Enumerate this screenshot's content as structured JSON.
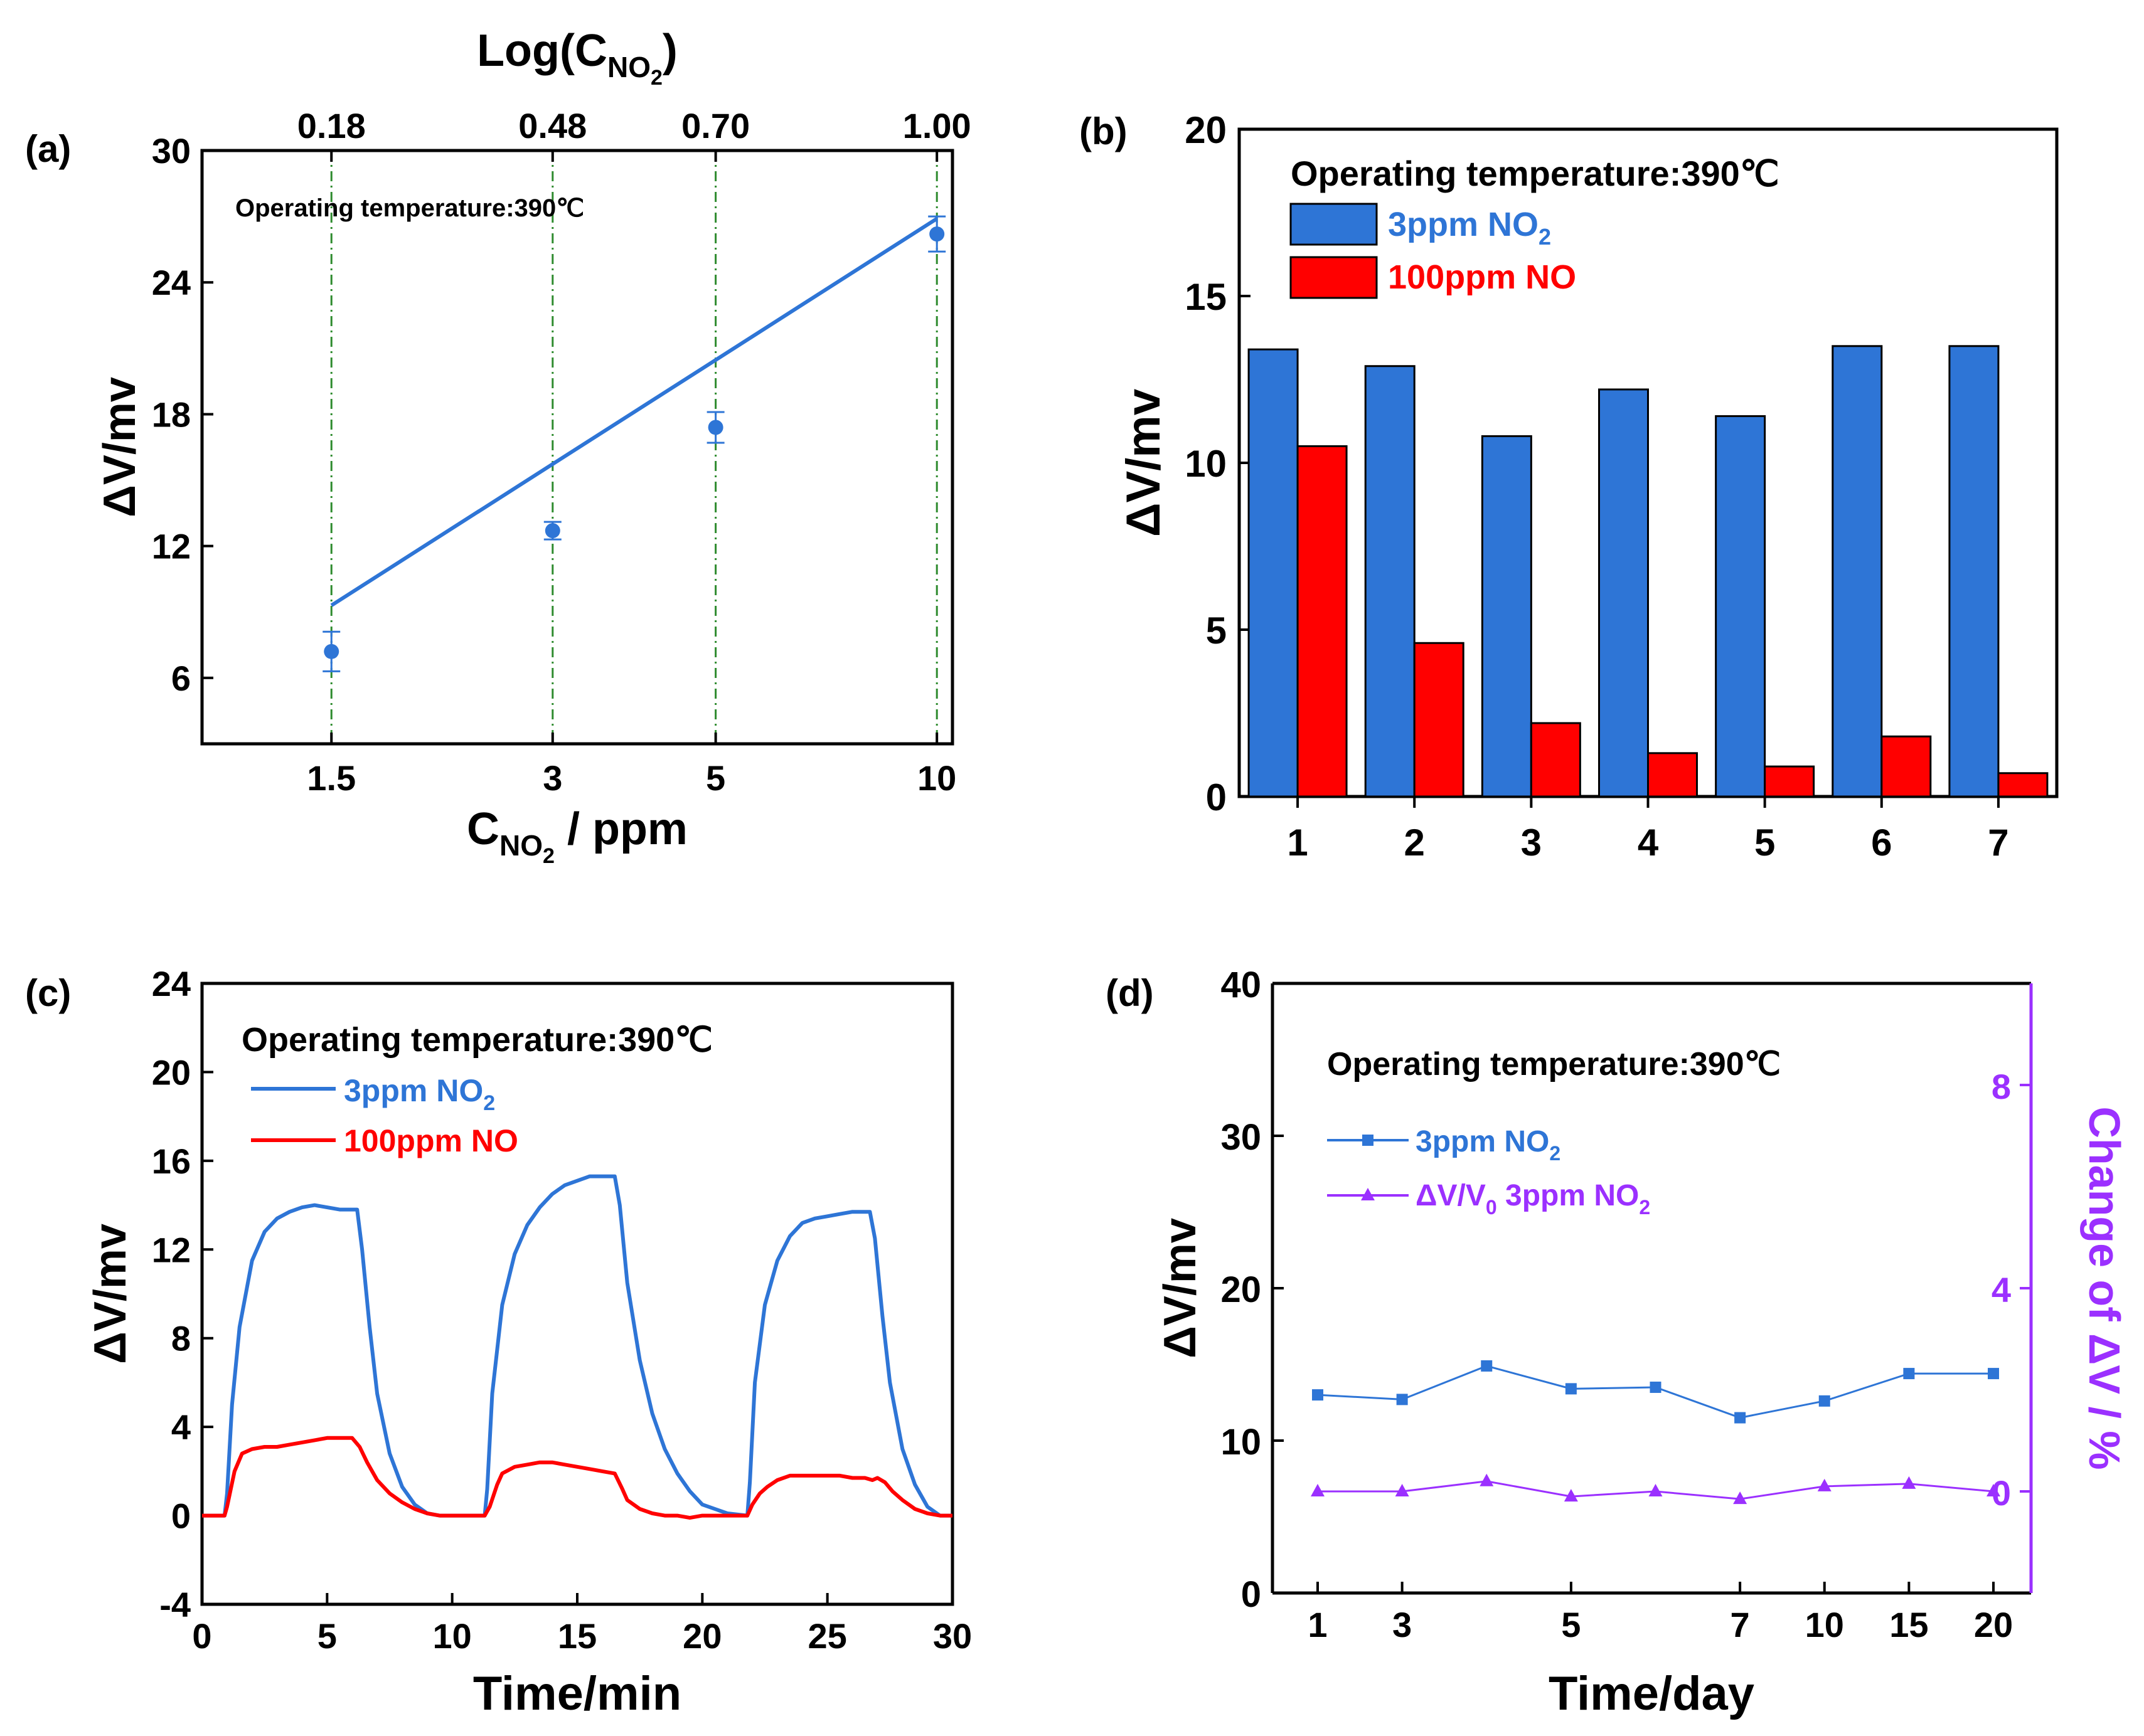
{
  "colors": {
    "blue": "#2E75D6",
    "red": "#FF0000",
    "purple": "#9B30FF",
    "green": "#2E8B2E",
    "black": "#000000"
  },
  "chart_data": [
    {
      "panel": "a",
      "label": "(a)",
      "type": "scatter",
      "xlabel_main": "C",
      "xlabel_sub": "NO",
      "xlabel_subsub": "2",
      "xlabel_tail": " / ppm",
      "top_label_main": "Log(C",
      "top_label_sub": "NO",
      "top_label_subsub": "2",
      "top_label_tail": ")",
      "ylabel": "ΔV/mv",
      "annotation": "Operating temperature:390℃",
      "xlim": [
        1.0,
        10.5
      ],
      "ylim": [
        3,
        30
      ],
      "xticks": [
        1.5,
        3,
        5,
        10
      ],
      "xtick_labels": [
        "1.5",
        "3",
        "5",
        "10"
      ],
      "top_ticks": [
        1.5,
        3,
        5,
        10
      ],
      "top_tick_labels": [
        "0.18",
        "0.48",
        "0.70",
        "1.00"
      ],
      "yticks": [
        6,
        12,
        18,
        24,
        30
      ],
      "ytick_labels": [
        "6",
        "12",
        "18",
        "24",
        "30"
      ],
      "points": {
        "x": [
          1.5,
          3,
          5,
          10
        ],
        "y": [
          7.2,
          12.7,
          17.4,
          26.2
        ],
        "err": [
          0.9,
          0.4,
          0.7,
          0.8
        ]
      },
      "fit": {
        "x": [
          1.5,
          10
        ],
        "y": [
          9.3,
          26.9
        ]
      },
      "vlines": [
        1.5,
        3,
        5,
        10
      ]
    },
    {
      "panel": "b",
      "label": "(b)",
      "type": "bar",
      "ylabel": "ΔV/mv",
      "annotation": "Operating temperature:390℃",
      "categories": [
        "1",
        "2",
        "3",
        "4",
        "5",
        "6",
        "7"
      ],
      "ylim": [
        0,
        20
      ],
      "yticks": [
        0,
        5,
        10,
        15,
        20
      ],
      "ytick_labels": [
        "0",
        "5",
        "10",
        "15",
        "20"
      ],
      "series": [
        {
          "name": "3ppm     NO",
          "name_sub": "2",
          "values": [
            13.4,
            12.9,
            10.8,
            12.2,
            11.4,
            13.5,
            13.5
          ]
        },
        {
          "name": "100ppm NO",
          "name_sub": "",
          "values": [
            10.5,
            4.6,
            2.2,
            1.3,
            0.9,
            1.8,
            0.7
          ]
        }
      ]
    },
    {
      "panel": "c",
      "label": "(c)",
      "type": "line",
      "xlabel": "Time/min",
      "ylabel": "ΔV/mv",
      "annotation": "Operating temperature:390℃",
      "xlim": [
        0,
        30
      ],
      "ylim": [
        -4,
        24
      ],
      "xticks": [
        0,
        5,
        10,
        15,
        20,
        25,
        30
      ],
      "xtick_labels": [
        "0",
        "5",
        "10",
        "15",
        "20",
        "25",
        "30"
      ],
      "yticks": [
        -4,
        0,
        4,
        8,
        12,
        16,
        20,
        24
      ],
      "ytick_labels": [
        "-4",
        "0",
        "4",
        "8",
        "12",
        "16",
        "20",
        "24"
      ],
      "series": [
        {
          "name": "3ppm     NO",
          "name_sub": "2",
          "x": [
            0,
            0.9,
            1.0,
            1.2,
            1.5,
            2,
            2.5,
            3,
            3.5,
            4,
            4.5,
            5,
            5.5,
            6.2,
            6.4,
            6.7,
            7,
            7.5,
            8,
            8.5,
            9,
            9.5,
            10,
            10.5,
            11.3,
            11.4,
            11.6,
            12,
            12.5,
            13,
            13.5,
            14,
            14.5,
            15,
            15.5,
            16,
            16.5,
            16.7,
            17,
            17.5,
            18,
            18.5,
            19,
            19.5,
            20,
            21,
            21.8,
            21.9,
            22.1,
            22.5,
            23,
            23.5,
            24,
            24.5,
            25,
            25.5,
            26,
            26.7,
            26.9,
            27.2,
            27.5,
            28,
            28.5,
            29,
            29.5,
            30
          ],
          "y": [
            0,
            0,
            1.0,
            5.0,
            8.5,
            11.5,
            12.8,
            13.4,
            13.7,
            13.9,
            14.0,
            13.9,
            13.8,
            13.8,
            12.0,
            8.5,
            5.5,
            2.8,
            1.3,
            0.5,
            0.1,
            0,
            0,
            0,
            0,
            1.2,
            5.5,
            9.5,
            11.8,
            13.1,
            13.9,
            14.5,
            14.9,
            15.1,
            15.3,
            15.3,
            15.3,
            14.0,
            10.5,
            7.0,
            4.6,
            3.0,
            1.9,
            1.1,
            0.5,
            0.1,
            0,
            1.5,
            6.0,
            9.5,
            11.5,
            12.6,
            13.2,
            13.4,
            13.5,
            13.6,
            13.7,
            13.7,
            12.5,
            9.0,
            6.0,
            3.0,
            1.4,
            0.4,
            0,
            0
          ]
        },
        {
          "name": "100ppm NO",
          "name_sub": "",
          "x": [
            0,
            0.9,
            1.0,
            1.3,
            1.6,
            2,
            2.5,
            3,
            3.5,
            4,
            4.5,
            5,
            5.5,
            6,
            6.3,
            6.6,
            7,
            7.5,
            8,
            8.5,
            9,
            9.5,
            10,
            11.3,
            11.5,
            11.8,
            12,
            12.5,
            13,
            13.5,
            14,
            14.5,
            15,
            15.5,
            16,
            16.5,
            16.8,
            17,
            17.5,
            18,
            18.5,
            19,
            19.5,
            20,
            21,
            21.8,
            22,
            22.3,
            22.6,
            23,
            23.5,
            24,
            24.5,
            25,
            25.5,
            26,
            26.5,
            26.8,
            27,
            27.3,
            27.6,
            28,
            28.5,
            29,
            29.5,
            30
          ],
          "y": [
            0,
            0,
            0.4,
            2.0,
            2.8,
            3.0,
            3.1,
            3.1,
            3.2,
            3.3,
            3.4,
            3.5,
            3.5,
            3.5,
            3.1,
            2.4,
            1.6,
            1.0,
            0.6,
            0.3,
            0.1,
            0,
            0,
            0,
            0.4,
            1.4,
            1.9,
            2.2,
            2.3,
            2.4,
            2.4,
            2.3,
            2.2,
            2.1,
            2.0,
            1.9,
            1.2,
            0.7,
            0.3,
            0.1,
            0,
            0,
            -0.1,
            0,
            0,
            0,
            0.5,
            1.0,
            1.3,
            1.6,
            1.8,
            1.8,
            1.8,
            1.8,
            1.8,
            1.7,
            1.7,
            1.6,
            1.7,
            1.5,
            1.1,
            0.7,
            0.3,
            0.1,
            0,
            0
          ]
        }
      ]
    },
    {
      "panel": "d",
      "label": "(d)",
      "type": "line",
      "xlabel": "Time/day",
      "ylabel": "ΔV/mv",
      "ylabel_right": "Change of ΔV / %",
      "annotation": "Operating temperature:390℃",
      "categories": [
        "1",
        "3",
        "",
        "5",
        "",
        "7",
        "10",
        "15",
        "20"
      ],
      "xtick_labels": [
        "1",
        "3",
        "5",
        "7",
        "10",
        "15",
        "20"
      ],
      "xtick_positions": [
        0,
        1,
        3,
        5,
        6,
        7,
        8
      ],
      "ylim": [
        0,
        40
      ],
      "yticks": [
        0,
        10,
        20,
        30,
        40
      ],
      "ytick_labels": [
        "0",
        "10",
        "20",
        "30",
        "40"
      ],
      "ylim_right": [
        -2,
        10
      ],
      "yticks_right": [
        0,
        4,
        8
      ],
      "ytick_labels_right": [
        "0",
        "4",
        "8"
      ],
      "series": [
        {
          "name": "3ppm  NO",
          "name_sub": "2",
          "axis": "left",
          "marker": "square",
          "values": [
            13.0,
            12.7,
            14.9,
            13.4,
            13.5,
            11.5,
            12.6,
            14.4,
            14.4
          ]
        },
        {
          "name": "ΔV/V",
          "name_sub0": "0",
          "name_tail": " 3ppm  NO",
          "name_sub": "2",
          "axis": "right",
          "marker": "triangle",
          "values": [
            0.0,
            0.0,
            0.2,
            -0.1,
            0.0,
            -0.15,
            0.1,
            0.15,
            0.0
          ]
        }
      ]
    }
  ]
}
